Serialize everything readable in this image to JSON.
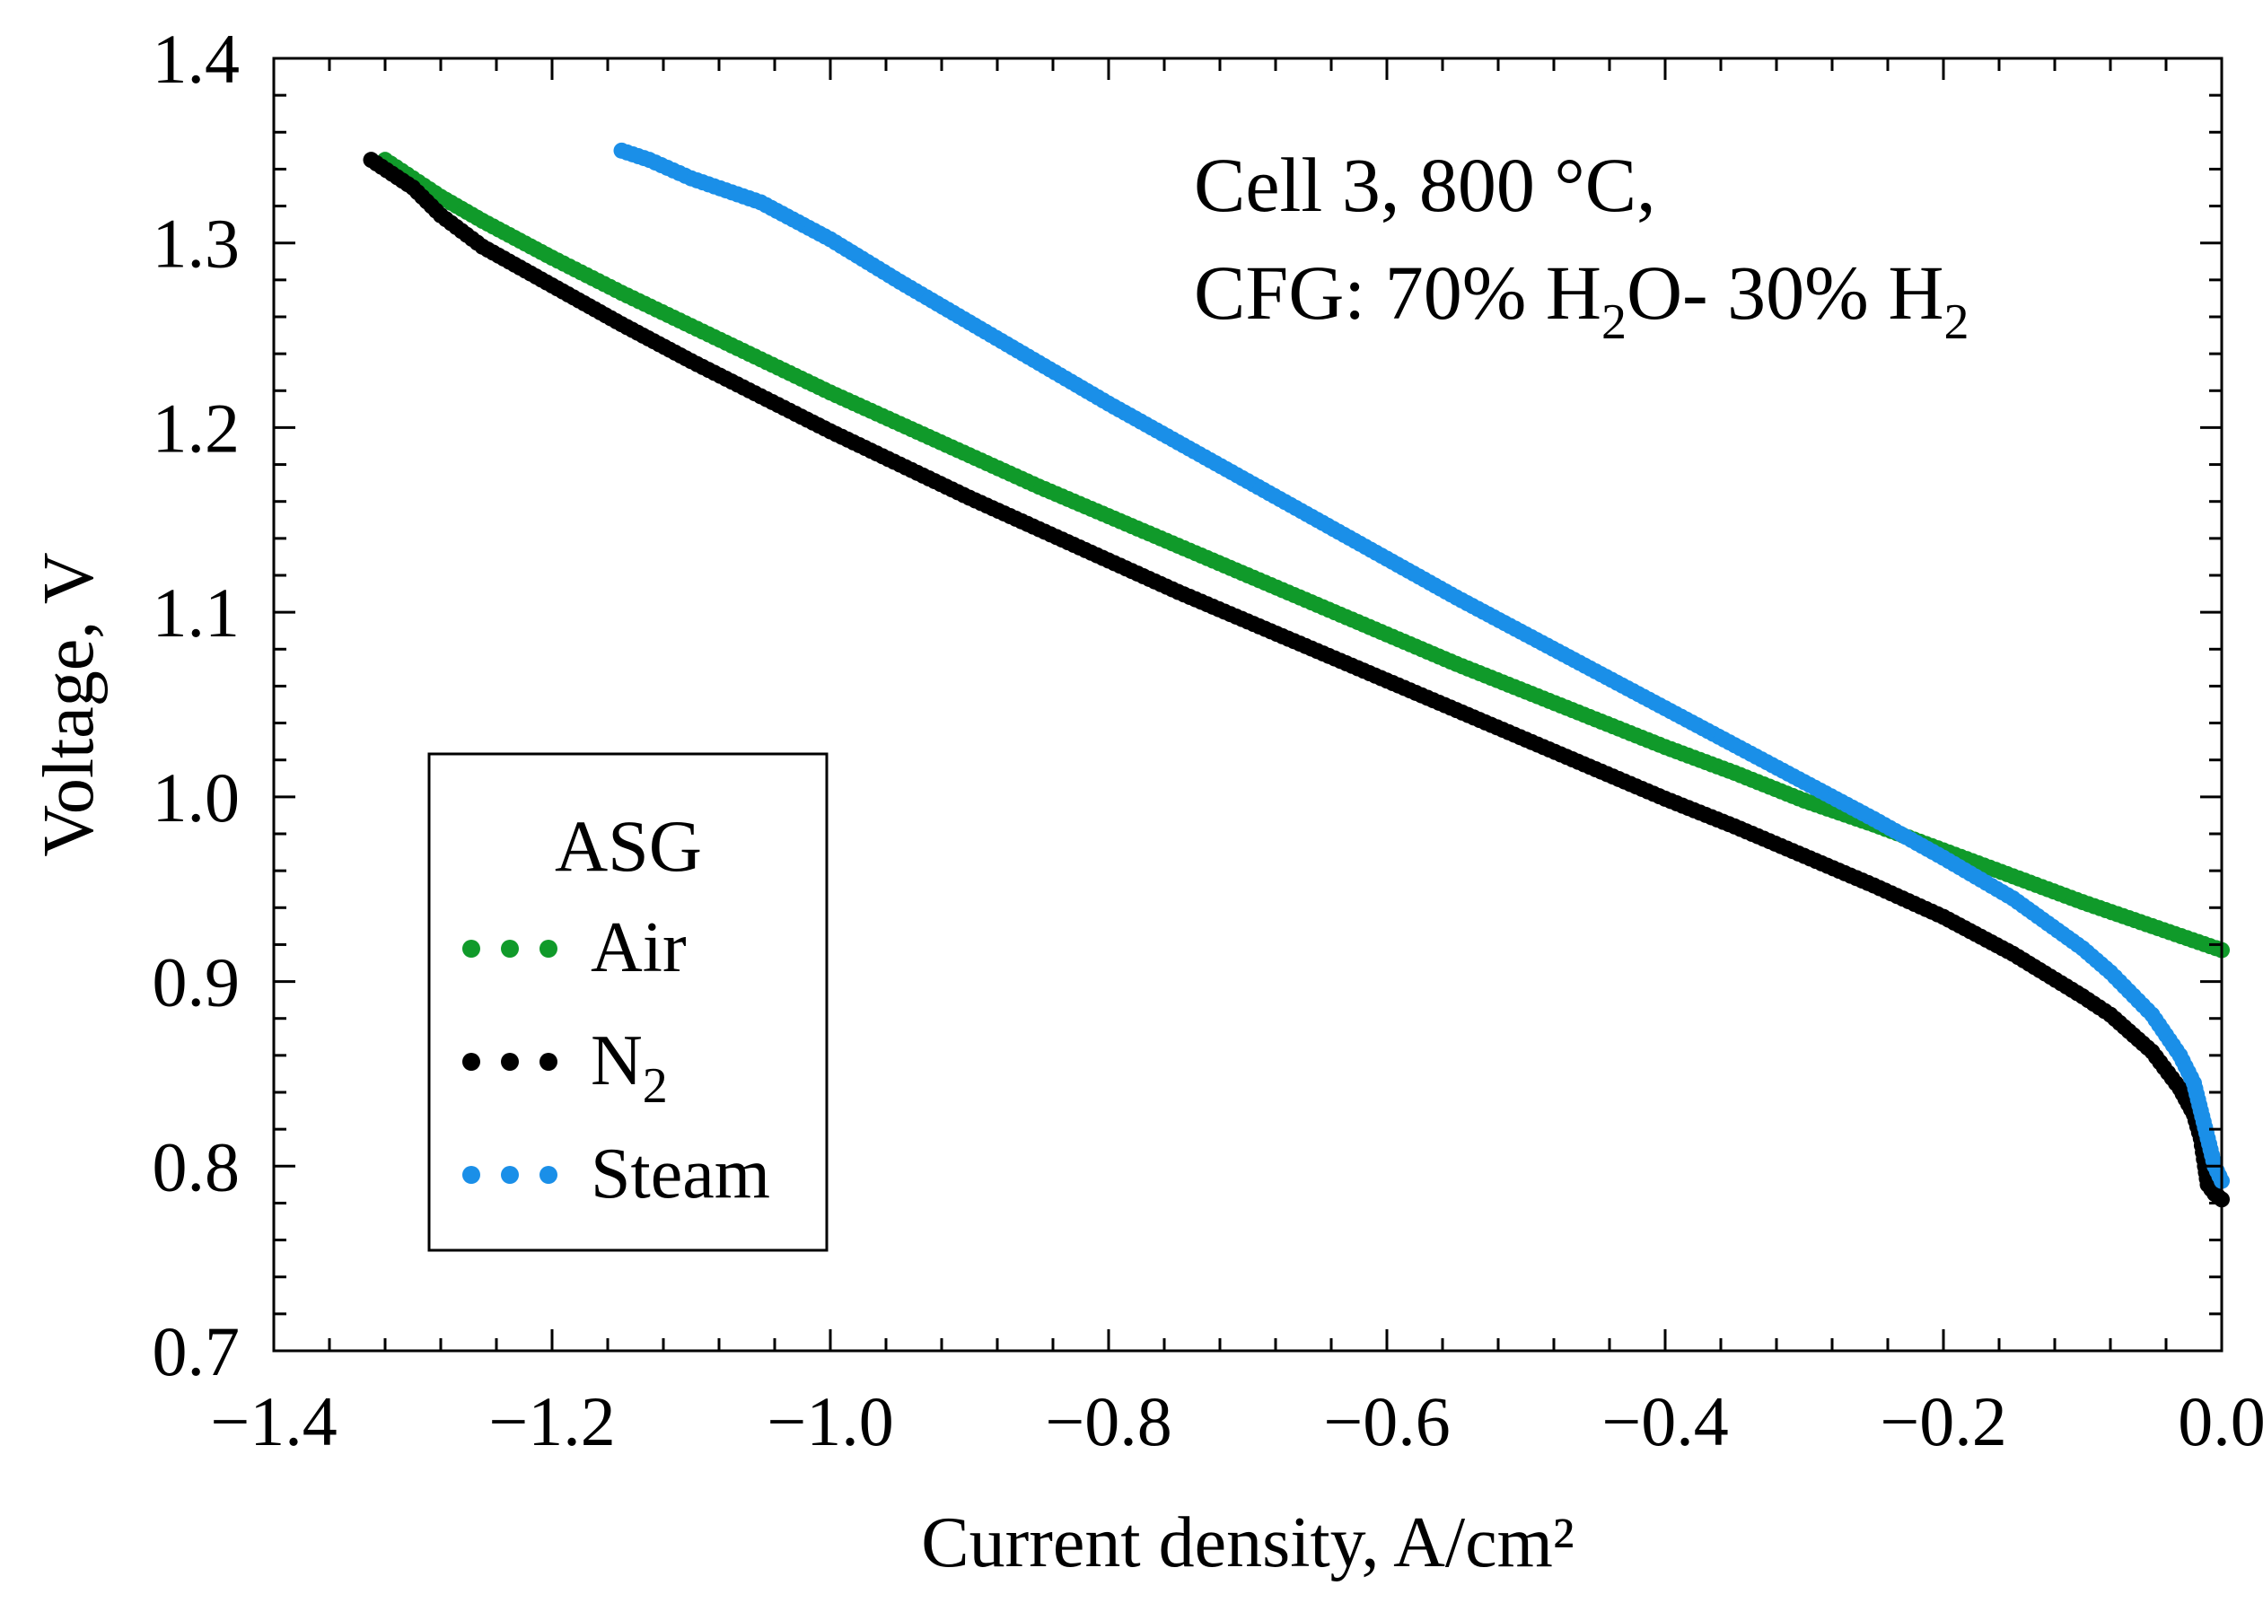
{
  "chart_data": {
    "type": "scatter",
    "xlabel": "Current density, A/cm²",
    "ylabel": "Voltage, V",
    "xlim": [
      -1.4,
      0.0
    ],
    "ylim": [
      0.7,
      1.4
    ],
    "x_ticks": [
      "−1.4",
      "−1.2",
      "−1.0",
      "−0.8",
      "−0.6",
      "−0.4",
      "−0.2",
      "0.0"
    ],
    "x_tick_values": [
      -1.4,
      -1.2,
      -1.0,
      -0.8,
      -0.6,
      -0.4,
      -0.2,
      0.0
    ],
    "y_ticks": [
      "0.7",
      "0.8",
      "0.9",
      "1.0",
      "1.1",
      "1.2",
      "1.3",
      "1.4"
    ],
    "y_tick_values": [
      0.7,
      0.8,
      0.9,
      1.0,
      1.1,
      1.2,
      1.3,
      1.4
    ],
    "grid": false,
    "annotation": {
      "line1": "Cell 3, 800 °C,",
      "line2_prefix": "CFG: 70% H",
      "sub_a": "2",
      "line2_mid": "O- 30% H",
      "sub_b": "2"
    },
    "legend": {
      "title": "ASG",
      "position": "left-center"
    },
    "series": [
      {
        "name": "Air",
        "label_text": "Air",
        "color": "#109a2a",
        "points": [
          [
            0.0,
            0.917
          ],
          [
            -0.05,
            0.93
          ],
          [
            -0.1,
            0.943
          ],
          [
            -0.15,
            0.957
          ],
          [
            -0.2,
            0.971
          ],
          [
            -0.25,
            0.985
          ],
          [
            -0.3,
            0.998
          ],
          [
            -0.35,
            1.013
          ],
          [
            -0.4,
            1.027
          ],
          [
            -0.45,
            1.042
          ],
          [
            -0.5,
            1.057
          ],
          [
            -0.55,
            1.072
          ],
          [
            -0.6,
            1.088
          ],
          [
            -0.65,
            1.104
          ],
          [
            -0.7,
            1.12
          ],
          [
            -0.75,
            1.136
          ],
          [
            -0.8,
            1.152
          ],
          [
            -0.85,
            1.168
          ],
          [
            -0.9,
            1.185
          ],
          [
            -0.95,
            1.202
          ],
          [
            -1.0,
            1.219
          ],
          [
            -1.05,
            1.237
          ],
          [
            -1.1,
            1.255
          ],
          [
            -1.15,
            1.273
          ],
          [
            -1.2,
            1.292
          ],
          [
            -1.25,
            1.312
          ],
          [
            -1.28,
            1.325
          ],
          [
            -1.3,
            1.335
          ],
          [
            -1.32,
            1.345
          ]
        ]
      },
      {
        "name": "N2",
        "label_text": "N",
        "label_sub": "2",
        "color": "#000000",
        "points": [
          [
            0.0,
            0.782
          ],
          [
            -0.005,
            0.785
          ],
          [
            -0.01,
            0.79
          ],
          [
            -0.012,
            0.8
          ],
          [
            -0.015,
            0.815
          ],
          [
            -0.02,
            0.828
          ],
          [
            -0.03,
            0.842
          ],
          [
            -0.05,
            0.862
          ],
          [
            -0.08,
            0.882
          ],
          [
            -0.1,
            0.892
          ],
          [
            -0.15,
            0.915
          ],
          [
            -0.2,
            0.935
          ],
          [
            -0.25,
            0.952
          ],
          [
            -0.3,
            0.968
          ],
          [
            -0.35,
            0.984
          ],
          [
            -0.4,
            0.999
          ],
          [
            -0.45,
            1.015
          ],
          [
            -0.5,
            1.031
          ],
          [
            -0.55,
            1.047
          ],
          [
            -0.6,
            1.063
          ],
          [
            -0.65,
            1.079
          ],
          [
            -0.7,
            1.095
          ],
          [
            -0.75,
            1.111
          ],
          [
            -0.8,
            1.128
          ],
          [
            -0.85,
            1.145
          ],
          [
            -0.9,
            1.162
          ],
          [
            -0.95,
            1.18
          ],
          [
            -1.0,
            1.198
          ],
          [
            -1.05,
            1.217
          ],
          [
            -1.1,
            1.236
          ],
          [
            -1.15,
            1.256
          ],
          [
            -1.2,
            1.277
          ],
          [
            -1.25,
            1.298
          ],
          [
            -1.28,
            1.315
          ],
          [
            -1.3,
            1.33
          ],
          [
            -1.33,
            1.345
          ]
        ]
      },
      {
        "name": "Steam",
        "label_text": "Steam",
        "color": "#1a8fe8",
        "points": [
          [
            0.0,
            0.792
          ],
          [
            -0.005,
            0.8
          ],
          [
            -0.01,
            0.815
          ],
          [
            -0.015,
            0.83
          ],
          [
            -0.02,
            0.845
          ],
          [
            -0.03,
            0.86
          ],
          [
            -0.05,
            0.882
          ],
          [
            -0.08,
            0.905
          ],
          [
            -0.1,
            0.918
          ],
          [
            -0.15,
            0.945
          ],
          [
            -0.2,
            0.967
          ],
          [
            -0.25,
            0.988
          ],
          [
            -0.3,
            1.008
          ],
          [
            -0.35,
            1.028
          ],
          [
            -0.4,
            1.048
          ],
          [
            -0.45,
            1.068
          ],
          [
            -0.5,
            1.088
          ],
          [
            -0.55,
            1.108
          ],
          [
            -0.6,
            1.129
          ],
          [
            -0.65,
            1.15
          ],
          [
            -0.7,
            1.171
          ],
          [
            -0.75,
            1.192
          ],
          [
            -0.8,
            1.213
          ],
          [
            -0.85,
            1.235
          ],
          [
            -0.9,
            1.257
          ],
          [
            -0.95,
            1.279
          ],
          [
            -1.0,
            1.302
          ],
          [
            -1.05,
            1.322
          ],
          [
            -1.1,
            1.335
          ],
          [
            -1.13,
            1.345
          ],
          [
            -1.15,
            1.35
          ]
        ]
      }
    ]
  }
}
